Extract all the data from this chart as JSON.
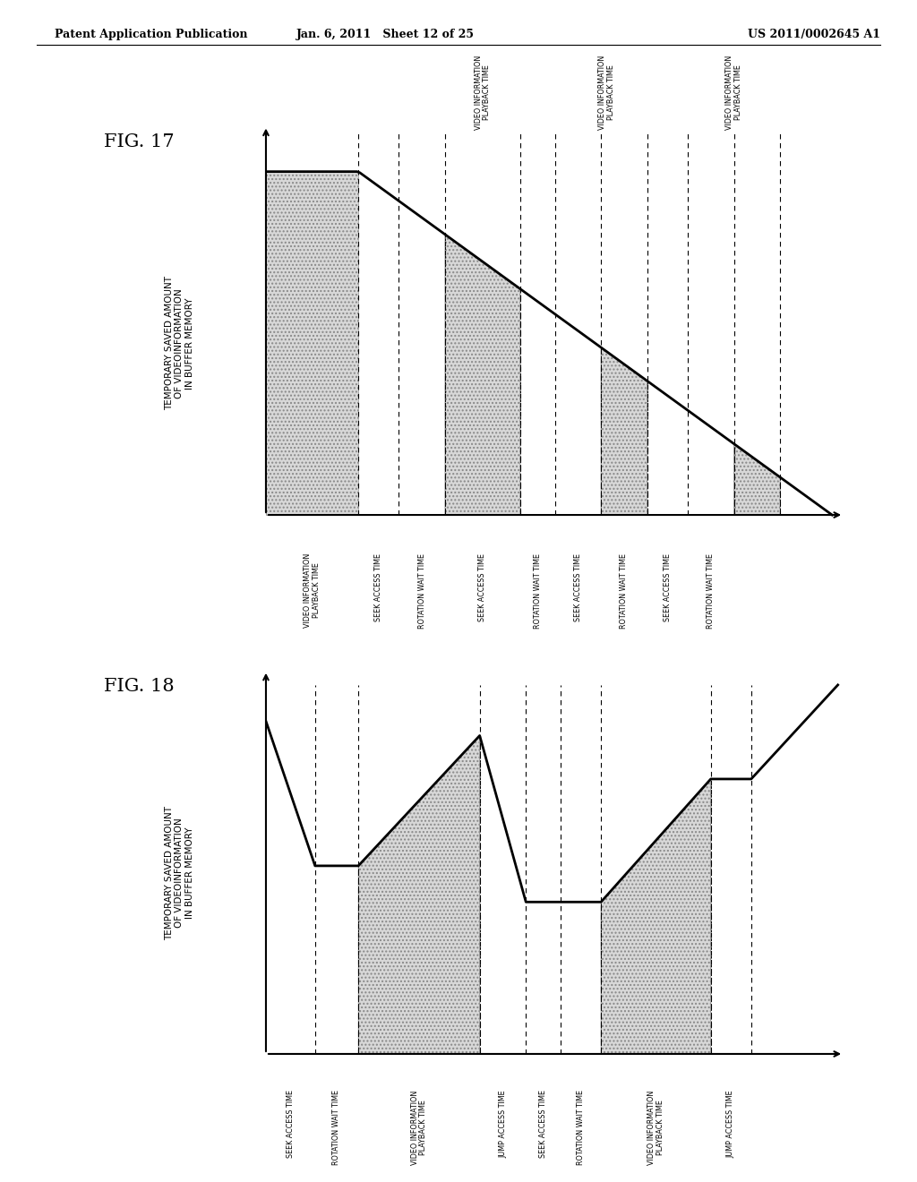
{
  "header_left": "Patent Application Publication",
  "header_mid": "Jan. 6, 2011   Sheet 12 of 25",
  "header_right": "US 2011/0002645 A1",
  "fig17_label": "FIG. 17",
  "fig18_label": "FIG. 18",
  "ylabel_lines": [
    "TEMPORARY SAVED AMOUNT",
    "OF VIDEOINFORMATION",
    "IN BUFFER MEMORY"
  ],
  "fig17_below_labels": [
    "VIDEO INFORMATION\nPLAYBACK TIME",
    "SEEK ACCESS TIME",
    "ROTATION WAIT TIME",
    "SEEK ACCESS TIME",
    "ROTATION WAIT TIME",
    "SEEK ACCESS TIME",
    "ROTATION WAIT TIME",
    "SEEK ACCESS TIME",
    "ROTATION WAIT TIME"
  ],
  "fig17_above_labels": [
    "VIDEO INFORMATION\nPLAYBACK TIME",
    "VIDEO INFORMATION\nPLAYBACK TIME",
    "VIDEO INFORMATION\nPLAYBACK TIME"
  ],
  "fig18_below_labels": [
    "SEEK ACCESS TIME",
    "ROTATION WAIT TIME",
    "VIDEO INFORMATION\nPLAYBACK TIME",
    "JUMP ACCESS TIME",
    "SEEK ACCESS TIME",
    "ROTATION WAIT TIME",
    "VIDEO INFORMATION\nPLAYBACK TIME",
    "JUMP ACCESS TIME"
  ],
  "background_color": "#ffffff"
}
